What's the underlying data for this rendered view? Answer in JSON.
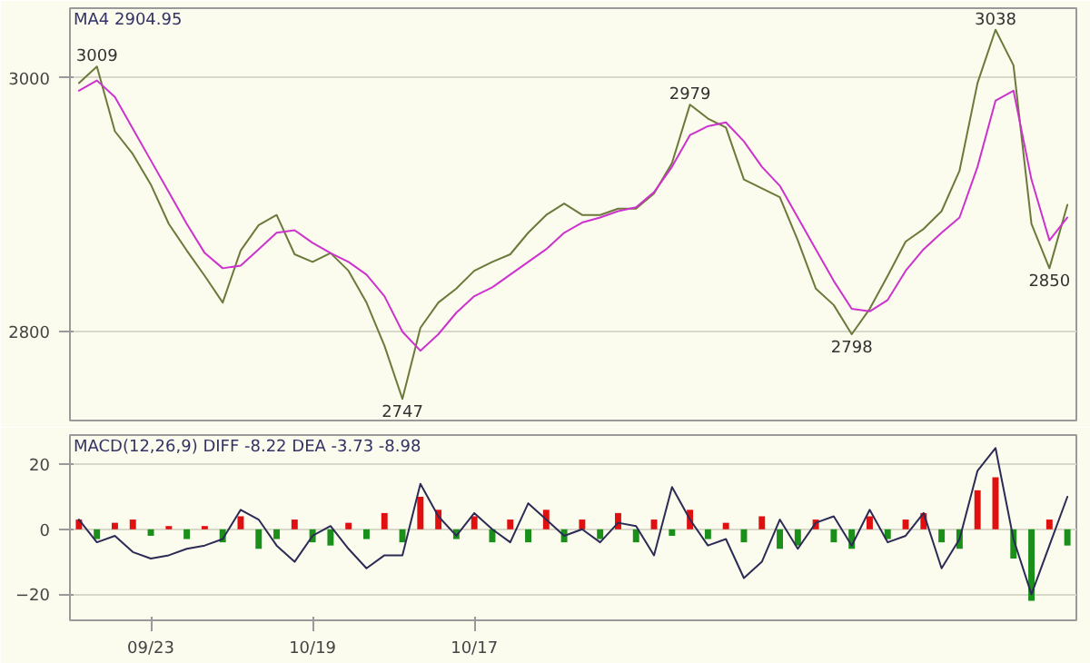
{
  "chart_data": [
    {
      "type": "line",
      "annotations": [
        "MA4  2904.95",
        {
          "text": "3009",
          "y": 3009
        },
        {
          "text": "2747",
          "y": 2747
        },
        {
          "text": "2979",
          "y": 2979
        },
        {
          "text": "2798",
          "y": 2798
        },
        {
          "text": "3038",
          "y": 3038
        },
        {
          "text": "2850",
          "y": 2850
        }
      ],
      "categories": [
        null,
        null,
        null,
        null,
        null,
        null,
        null,
        null,
        null,
        null,
        null,
        null,
        null,
        null,
        null,
        null,
        null,
        null,
        null,
        null,
        null,
        null,
        null,
        null,
        null,
        null,
        null,
        null,
        null,
        null,
        null,
        null,
        null,
        null,
        null,
        null,
        null,
        null,
        null,
        null,
        null,
        null,
        null,
        null,
        null,
        null,
        null,
        null,
        null,
        null,
        null,
        null,
        null,
        null,
        null,
        null
      ],
      "ylim": [
        2730,
        3055
      ],
      "yticks": [
        2800,
        3000
      ],
      "grid": "y",
      "tick_labels": "y",
      "series": [
        {
          "color": "#6b7a3a",
          "values": [
            2996,
            3009,
            2958,
            2940,
            2916,
            2885,
            2864,
            2844,
            2823,
            2864,
            2884,
            2892,
            2861,
            2855,
            2862,
            2848,
            2823,
            2789,
            2747,
            2803,
            2823,
            2834,
            2848,
            2855,
            2861,
            2878,
            2892,
            2901,
            2892,
            2892,
            2897,
            2897,
            2909,
            2933,
            2979,
            2968,
            2961,
            2920,
            2913,
            2906,
            2872,
            2834,
            2821,
            2798,
            2818,
            2844,
            2871,
            2881,
            2895,
            2927,
            2996,
            3038,
            3010,
            2885,
            2850,
            2900
          ]
        },
        {
          "color": "#cc33cc",
          "values": [
            2990,
            2998,
            2985,
            2960,
            2935,
            2910,
            2885,
            2862,
            2850,
            2852,
            2865,
            2878,
            2880,
            2870,
            2862,
            2855,
            2845,
            2828,
            2800,
            2785,
            2798,
            2815,
            2828,
            2835,
            2845,
            2855,
            2865,
            2878,
            2886,
            2890,
            2895,
            2898,
            2910,
            2930,
            2955,
            2962,
            2965,
            2950,
            2930,
            2915,
            2890,
            2865,
            2840,
            2818,
            2816,
            2825,
            2848,
            2865,
            2878,
            2890,
            2930,
            2982,
            2990,
            2920,
            2872,
            2890
          ]
        }
      ]
    },
    {
      "type": "bar",
      "annotations": [
        "MACD(12,26,9)  DIFF -8.22  DEA -3.73  -8.98"
      ],
      "categories": [
        null,
        null,
        null,
        null,
        "09/23",
        null,
        null,
        null,
        null,
        null,
        null,
        null,
        null,
        "10/19",
        null,
        null,
        null,
        null,
        null,
        null,
        null,
        null,
        "10/17",
        null,
        null,
        null,
        null,
        null,
        null,
        null,
        null,
        null,
        null,
        null,
        null,
        null,
        null,
        null,
        null,
        null,
        null,
        null,
        null,
        null,
        null,
        null,
        null,
        null,
        null,
        null,
        null,
        null,
        null,
        null,
        null,
        null
      ],
      "ylim": [
        -28,
        29
      ],
      "yticks": [
        -20,
        0,
        20
      ],
      "grid": "y",
      "series": [
        {
          "type": "bar",
          "values": [
            3,
            -3,
            2,
            3,
            -2,
            1,
            -3,
            1,
            -4,
            4,
            -6,
            -3,
            3,
            -4,
            -5,
            2,
            -3,
            5,
            -4,
            10,
            6,
            -3,
            4,
            -4,
            3,
            -4,
            6,
            -4,
            3,
            -3,
            5,
            -4,
            3,
            -2,
            6,
            -3,
            2,
            -4,
            4,
            -6,
            -5,
            3,
            -4,
            -6,
            4,
            -3,
            3,
            5,
            -4,
            -6,
            12,
            16,
            -9,
            -22,
            3,
            -5
          ],
          "colors": [
            "#e01010",
            "#1a8f1a",
            "#e01010",
            "#e01010",
            "#1a8f1a",
            "#e01010",
            "#1a8f1a",
            "#e01010",
            "#1a8f1a",
            "#e01010",
            "#1a8f1a",
            "#1a8f1a",
            "#e01010",
            "#1a8f1a",
            "#1a8f1a",
            "#e01010",
            "#1a8f1a",
            "#e01010",
            "#1a8f1a",
            "#e01010",
            "#e01010",
            "#1a8f1a",
            "#e01010",
            "#1a8f1a",
            "#e01010",
            "#1a8f1a",
            "#e01010",
            "#1a8f1a",
            "#e01010",
            "#1a8f1a",
            "#e01010",
            "#1a8f1a",
            "#e01010",
            "#1a8f1a",
            "#e01010",
            "#1a8f1a",
            "#e01010",
            "#1a8f1a",
            "#e01010",
            "#1a8f1a",
            "#1a8f1a",
            "#e01010",
            "#1a8f1a",
            "#1a8f1a",
            "#e01010",
            "#1a8f1a",
            "#e01010",
            "#e01010",
            "#1a8f1a",
            "#1a8f1a",
            "#e01010",
            "#e01010",
            "#1a8f1a",
            "#1a8f1a",
            "#e01010",
            "#1a8f1a"
          ]
        },
        {
          "type": "line",
          "color": "#2b2b55",
          "values": [
            3,
            -4,
            -2,
            -7,
            -9,
            -8,
            -6,
            -5,
            -3,
            6,
            3,
            -5,
            -10,
            -2,
            1,
            -6,
            -12,
            -8,
            -8,
            14,
            4,
            -2,
            5,
            0,
            -4,
            8,
            3,
            -2,
            0,
            -4,
            2,
            1,
            -8,
            13,
            3,
            -5,
            -3,
            -15,
            -10,
            3,
            -6,
            2,
            4,
            -5,
            6,
            -4,
            -2,
            5,
            -12,
            -3,
            18,
            25,
            -3,
            -20,
            -5,
            10
          ]
        }
      ]
    }
  ]
}
